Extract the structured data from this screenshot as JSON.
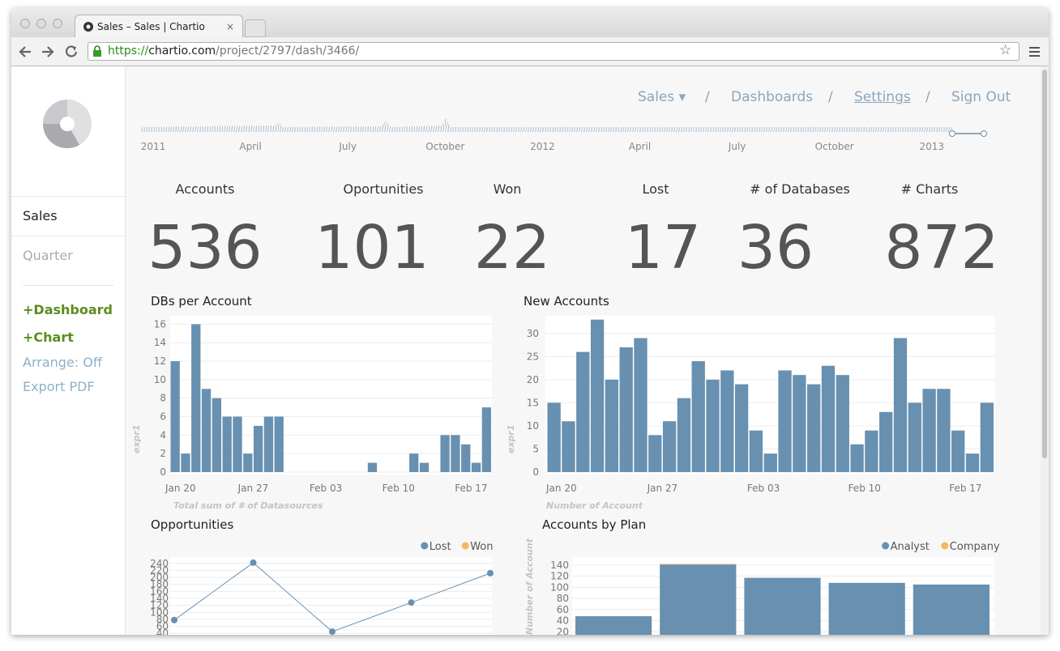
{
  "browser": {
    "tab_title": "Sales – Sales | Chartio",
    "url_scheme": "https://",
    "url_host": "chartio.com",
    "url_path": "/project/2797/dash/3466/"
  },
  "nav": {
    "items": [
      "Sales ▾",
      "Dashboards",
      "Settings",
      "Sign Out"
    ],
    "separator": "/"
  },
  "sidebar": {
    "items": [
      "Sales",
      "Quarter"
    ],
    "actions": [
      "+Dashboard",
      "+Chart"
    ],
    "links": [
      "Arrange: Off",
      "Export PDF"
    ]
  },
  "timeline": {
    "labels": [
      "2011",
      "April",
      "July",
      "October",
      "2012",
      "April",
      "July",
      "October",
      "2013"
    ]
  },
  "kpis": [
    {
      "label": "Accounts",
      "value": 536
    },
    {
      "label": "Oportunities",
      "value": 101
    },
    {
      "label": "Won",
      "value": 22
    },
    {
      "label": "Lost",
      "value": 17
    },
    {
      "label": "# of Databases",
      "value": 36
    },
    {
      "label": "# Charts",
      "value": 872
    }
  ],
  "chart_data": [
    {
      "type": "bar",
      "title": "DBs per Account",
      "y_label": "expr1",
      "x_label": "Total sum of # of Datasources",
      "categories": [
        null,
        "Jan 20",
        null,
        null,
        null,
        null,
        null,
        null,
        "Jan 27",
        null,
        null,
        null,
        null,
        null,
        null,
        "Feb 03",
        null,
        null,
        null,
        null,
        null,
        null,
        "Feb 10",
        null,
        null,
        null,
        null,
        null,
        null,
        "Feb 17",
        null
      ],
      "values": [
        12,
        2,
        16,
        9,
        8,
        6,
        6,
        2,
        5,
        6,
        6,
        null,
        null,
        null,
        null,
        null,
        null,
        null,
        null,
        1,
        null,
        null,
        null,
        2,
        1,
        null,
        4,
        4,
        3,
        1,
        7
      ],
      "color": "#6890b0",
      "ylim": [
        0,
        17
      ],
      "yticks": [
        0,
        2,
        4,
        6,
        8,
        10,
        12,
        14,
        16
      ],
      "grid": true
    },
    {
      "type": "bar",
      "title": "New Accounts",
      "y_label": "expr1",
      "x_label": "Number of Account",
      "categories": [
        null,
        "Jan 20",
        null,
        null,
        null,
        null,
        null,
        null,
        "Jan 27",
        null,
        null,
        null,
        null,
        null,
        null,
        "Feb 03",
        null,
        null,
        null,
        null,
        null,
        null,
        "Feb 10",
        null,
        null,
        null,
        null,
        null,
        null,
        "Feb 17",
        null
      ],
      "values": [
        15,
        11,
        26,
        33,
        20,
        27,
        29,
        8,
        11,
        16,
        24,
        20,
        22,
        19,
        9,
        4,
        22,
        21,
        19,
        23,
        21,
        6,
        9,
        13,
        29,
        15,
        18,
        18,
        9,
        4,
        15
      ],
      "color": "#6890b0",
      "ylim": [
        0,
        34
      ],
      "yticks": [
        0,
        5,
        10,
        15,
        20,
        25,
        30
      ],
      "grid": true
    },
    {
      "type": "line",
      "title": "Opportunities",
      "categories": [
        null,
        null,
        null,
        null,
        null
      ],
      "series": [
        {
          "name": "Lost",
          "color": "#6890b0",
          "values": [
            78,
            242,
            45,
            128,
            212
          ]
        },
        {
          "name": "Won",
          "color": "#f5b85a",
          "values": [
            null,
            null,
            null,
            null,
            null
          ]
        }
      ],
      "ylim": [
        0,
        258
      ],
      "yticks": [
        20,
        40,
        60,
        80,
        100,
        120,
        140,
        160,
        180,
        200,
        220,
        240
      ],
      "grid": true,
      "legend": "top-right"
    },
    {
      "type": "stacked_bar",
      "title": "Accounts by Plan",
      "y_label": "Number of Account",
      "categories": [
        null,
        null,
        null,
        null,
        null
      ],
      "series": [
        {
          "name": "Analyst",
          "color": "#6890b0",
          "values": [
            48,
            141,
            117,
            108,
            105
          ]
        },
        {
          "name": "Company",
          "color": "#f5b85a",
          "values": [
            0,
            1,
            0,
            0,
            0
          ]
        }
      ],
      "ylim": [
        0,
        150
      ],
      "yticks": [
        20,
        40,
        60,
        80,
        100,
        120,
        140
      ],
      "grid": true,
      "legend": "top-right"
    }
  ]
}
